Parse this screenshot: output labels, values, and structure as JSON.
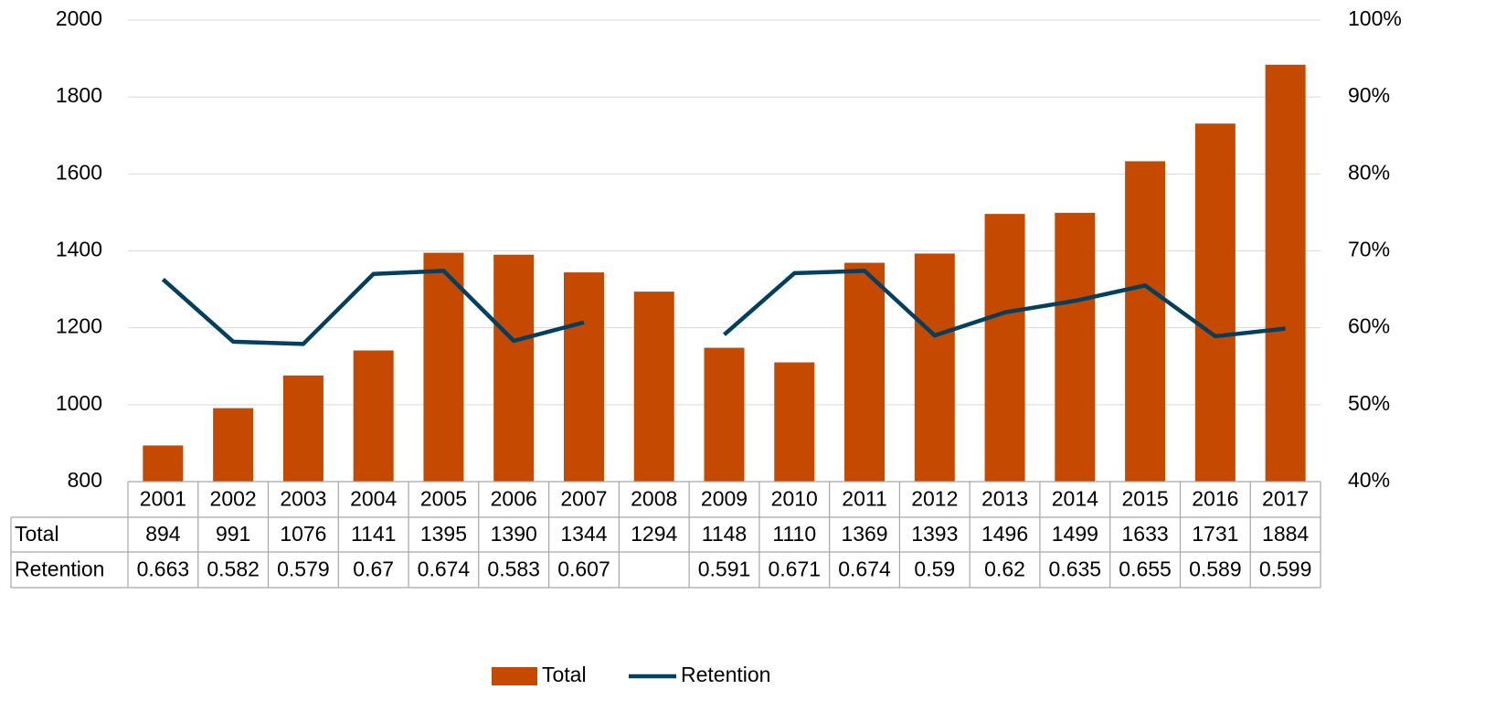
{
  "chart_data": {
    "type": "bar",
    "categories": [
      "2001",
      "2002",
      "2003",
      "2004",
      "2005",
      "2006",
      "2007",
      "2008",
      "2009",
      "2010",
      "2011",
      "2012",
      "2013",
      "2014",
      "2015",
      "2016",
      "2017"
    ],
    "series": [
      {
        "name": "Total",
        "type": "bar",
        "color": "#c54a00",
        "values": [
          894,
          991,
          1076,
          1141,
          1395,
          1390,
          1344,
          1294,
          1148,
          1110,
          1369,
          1393,
          1496,
          1499,
          1633,
          1731,
          1884
        ]
      },
      {
        "name": "Retention",
        "type": "line",
        "axis": "y2",
        "color": "#033f5f",
        "values": [
          0.663,
          0.582,
          0.579,
          0.67,
          0.674,
          0.583,
          0.607,
          null,
          0.591,
          0.671,
          0.674,
          0.59,
          0.62,
          0.635,
          0.655,
          0.589,
          0.599
        ]
      }
    ],
    "ylim": [
      800,
      2000
    ],
    "yticks": [
      800,
      1000,
      1200,
      1400,
      1600,
      1800,
      2000
    ],
    "y2lim": [
      0.4,
      1.0
    ],
    "y2ticks": [
      {
        "value": 0.4,
        "label": "40%"
      },
      {
        "value": 0.5,
        "label": "50%"
      },
      {
        "value": 0.6,
        "label": "60%"
      },
      {
        "value": 0.7,
        "label": "70%"
      },
      {
        "value": 0.8,
        "label": "80%"
      },
      {
        "value": 0.9,
        "label": "90%"
      },
      {
        "value": 1.0,
        "label": "100%"
      }
    ],
    "grid": true,
    "legend": "bottom"
  }
}
